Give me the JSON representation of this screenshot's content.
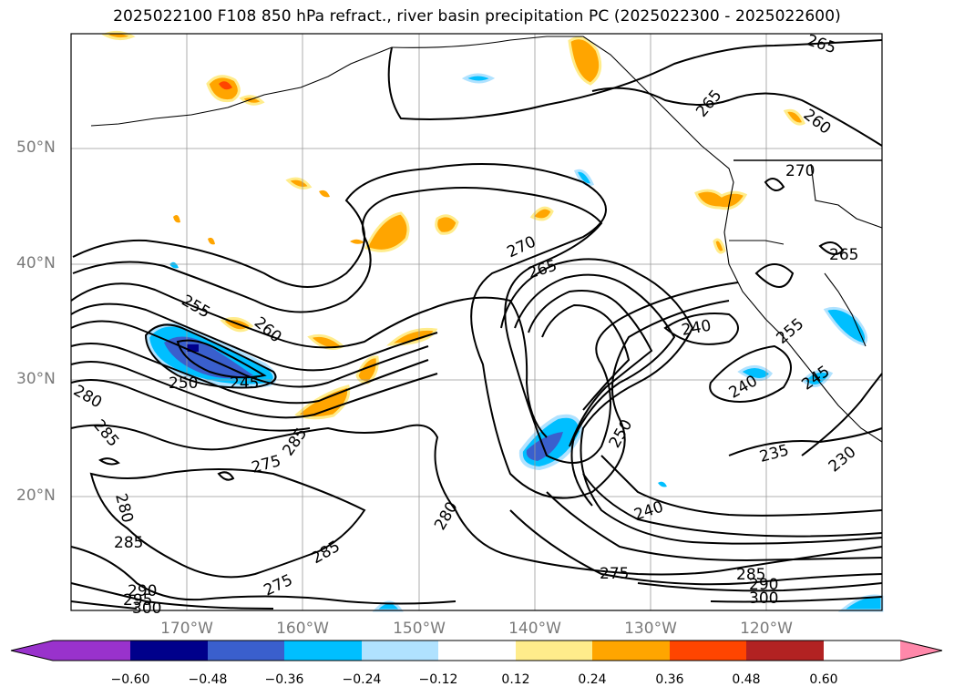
{
  "title": "2025022100 F108 850 hPa refract., river basin precipitation PC (2025022300 - 2025022600)",
  "map": {
    "lat_labels": [
      "50°N",
      "40°N",
      "30°N",
      "20°N"
    ],
    "lon_labels": [
      "170°W",
      "160°W",
      "150°W",
      "140°W",
      "130°W",
      "120°W"
    ],
    "contour_labels": [
      "265",
      "265",
      "260",
      "270",
      "265",
      "270",
      "265",
      "255",
      "260",
      "250",
      "245",
      "280",
      "285",
      "285",
      "275",
      "240",
      "255",
      "240",
      "245",
      "250",
      "235",
      "230",
      "280",
      "280",
      "285",
      "285",
      "275",
      "290",
      "295",
      "300",
      "240",
      "275",
      "285",
      "290",
      "300"
    ],
    "contour_interval": 5,
    "shaded_field": "precipitation PC",
    "contour_field": "850 hPa refract."
  },
  "colorbar": {
    "ticks": [
      "−0.60",
      "−0.48",
      "−0.36",
      "−0.24",
      "−0.12",
      "0.12",
      "0.24",
      "0.36",
      "0.48",
      "0.60"
    ],
    "colors": [
      "#9932cc",
      "#00008b",
      "#3a5fcd",
      "#00bfff",
      "#b0e2ff",
      "#ffffff",
      "#ffec8b",
      "#ffa500",
      "#ff4500",
      "#b22222",
      "#ff88aa"
    ],
    "extend": "both"
  }
}
